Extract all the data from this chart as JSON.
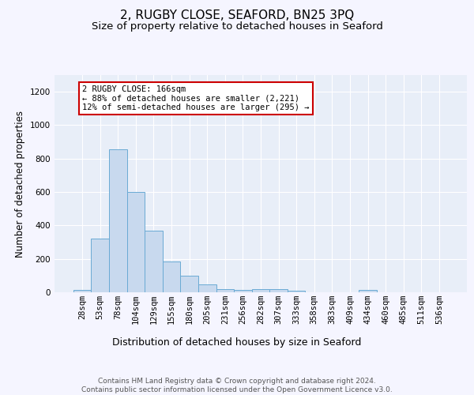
{
  "title": "2, RUGBY CLOSE, SEAFORD, BN25 3PQ",
  "subtitle": "Size of property relative to detached houses in Seaford",
  "xlabel": "Distribution of detached houses by size in Seaford",
  "ylabel": "Number of detached properties",
  "categories": [
    "28sqm",
    "53sqm",
    "78sqm",
    "104sqm",
    "129sqm",
    "155sqm",
    "180sqm",
    "205sqm",
    "231sqm",
    "256sqm",
    "282sqm",
    "307sqm",
    "333sqm",
    "358sqm",
    "383sqm",
    "409sqm",
    "434sqm",
    "460sqm",
    "485sqm",
    "511sqm",
    "536sqm"
  ],
  "values": [
    15,
    320,
    855,
    600,
    370,
    185,
    100,
    45,
    20,
    15,
    18,
    18,
    10,
    0,
    0,
    0,
    12,
    0,
    0,
    0,
    0
  ],
  "bar_color": "#c8d9ee",
  "bar_edge_color": "#6aaad4",
  "background_color": "#e8eef8",
  "grid_color": "#ffffff",
  "annotation_text": "2 RUGBY CLOSE: 166sqm\n← 88% of detached houses are smaller (2,221)\n12% of semi-detached houses are larger (295) →",
  "annotation_box_color": "#ffffff",
  "annotation_border_color": "#cc0000",
  "ylim": [
    0,
    1300
  ],
  "yticks": [
    0,
    200,
    400,
    600,
    800,
    1000,
    1200
  ],
  "footer_text": "Contains HM Land Registry data © Crown copyright and database right 2024.\nContains public sector information licensed under the Open Government Licence v3.0.",
  "title_fontsize": 11,
  "subtitle_fontsize": 9.5,
  "xlabel_fontsize": 9,
  "ylabel_fontsize": 8.5,
  "tick_fontsize": 7.5,
  "footer_fontsize": 6.5,
  "fig_facecolor": "#f5f5ff"
}
